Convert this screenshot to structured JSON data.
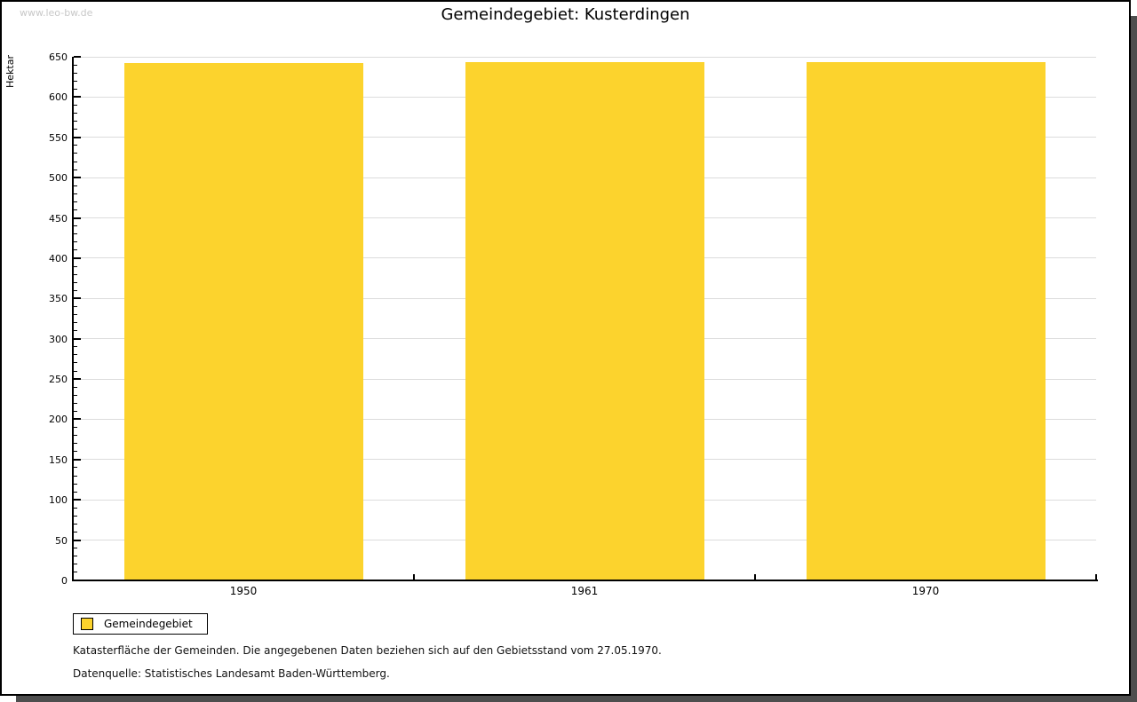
{
  "watermark": "www.leo-bw.de",
  "title": "Gemeindegebiet: Kusterdingen",
  "chart_data": {
    "type": "bar",
    "categories": [
      "1950",
      "1961",
      "1970"
    ],
    "series": [
      {
        "name": "Gemeindegebiet",
        "values": [
          642,
          643,
          643
        ]
      }
    ],
    "title": "Gemeindegebiet: Kusterdingen",
    "xlabel": "",
    "ylabel": "Hektar",
    "ylim": [
      0,
      650
    ],
    "y_major_step": 50,
    "y_minor_step": 10,
    "grid": true,
    "legend_position": "bottom-left",
    "bar_color": "#fcd32d"
  },
  "legend": {
    "items": [
      {
        "label": "Gemeindegebiet",
        "color": "#fcd32d"
      }
    ]
  },
  "footnotes": {
    "line1": "Katasterfläche der Gemeinden. Die angegebenen Daten beziehen sich auf den Gebietsstand vom 27.05.1970.",
    "line2": "Datenquelle: Statistisches Landesamt Baden-Württemberg."
  },
  "colors": {
    "bar": "#fcd32d",
    "gridline": "#dcdcdc",
    "axis": "#000000",
    "watermark": "#c8c8c8",
    "shadow": "#4e4e4e"
  }
}
